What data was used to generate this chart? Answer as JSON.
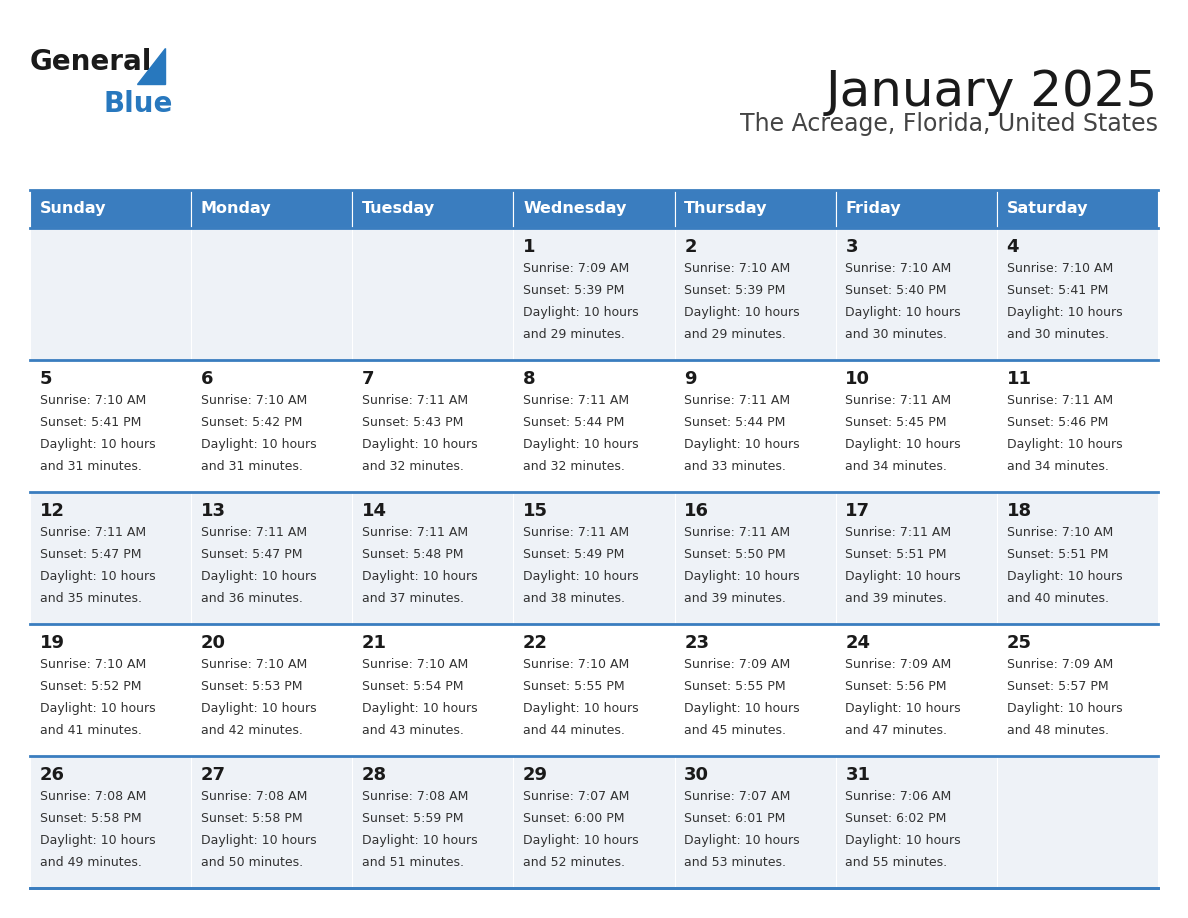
{
  "title": "January 2025",
  "subtitle": "The Acreage, Florida, United States",
  "header_color": "#3a7dbf",
  "header_text_color": "#ffffff",
  "cell_bg_even": "#eef2f7",
  "cell_bg_odd": "#ffffff",
  "border_color": "#3a7dbf",
  "day_names": [
    "Sunday",
    "Monday",
    "Tuesday",
    "Wednesday",
    "Thursday",
    "Friday",
    "Saturday"
  ],
  "title_color": "#1a1a1a",
  "subtitle_color": "#444444",
  "day_num_color": "#1a1a1a",
  "info_color": "#333333",
  "logo_general_color": "#1a1a1a",
  "logo_blue_color": "#2878be",
  "calendar": [
    [
      {
        "day": "",
        "sunrise": "",
        "sunset": "",
        "daylight": ""
      },
      {
        "day": "",
        "sunrise": "",
        "sunset": "",
        "daylight": ""
      },
      {
        "day": "",
        "sunrise": "",
        "sunset": "",
        "daylight": ""
      },
      {
        "day": "1",
        "sunrise": "7:09 AM",
        "sunset": "5:39 PM",
        "daylight": "10 hours and 29 minutes."
      },
      {
        "day": "2",
        "sunrise": "7:10 AM",
        "sunset": "5:39 PM",
        "daylight": "10 hours and 29 minutes."
      },
      {
        "day": "3",
        "sunrise": "7:10 AM",
        "sunset": "5:40 PM",
        "daylight": "10 hours and 30 minutes."
      },
      {
        "day": "4",
        "sunrise": "7:10 AM",
        "sunset": "5:41 PM",
        "daylight": "10 hours and 30 minutes."
      }
    ],
    [
      {
        "day": "5",
        "sunrise": "7:10 AM",
        "sunset": "5:41 PM",
        "daylight": "10 hours and 31 minutes."
      },
      {
        "day": "6",
        "sunrise": "7:10 AM",
        "sunset": "5:42 PM",
        "daylight": "10 hours and 31 minutes."
      },
      {
        "day": "7",
        "sunrise": "7:11 AM",
        "sunset": "5:43 PM",
        "daylight": "10 hours and 32 minutes."
      },
      {
        "day": "8",
        "sunrise": "7:11 AM",
        "sunset": "5:44 PM",
        "daylight": "10 hours and 32 minutes."
      },
      {
        "day": "9",
        "sunrise": "7:11 AM",
        "sunset": "5:44 PM",
        "daylight": "10 hours and 33 minutes."
      },
      {
        "day": "10",
        "sunrise": "7:11 AM",
        "sunset": "5:45 PM",
        "daylight": "10 hours and 34 minutes."
      },
      {
        "day": "11",
        "sunrise": "7:11 AM",
        "sunset": "5:46 PM",
        "daylight": "10 hours and 34 minutes."
      }
    ],
    [
      {
        "day": "12",
        "sunrise": "7:11 AM",
        "sunset": "5:47 PM",
        "daylight": "10 hours and 35 minutes."
      },
      {
        "day": "13",
        "sunrise": "7:11 AM",
        "sunset": "5:47 PM",
        "daylight": "10 hours and 36 minutes."
      },
      {
        "day": "14",
        "sunrise": "7:11 AM",
        "sunset": "5:48 PM",
        "daylight": "10 hours and 37 minutes."
      },
      {
        "day": "15",
        "sunrise": "7:11 AM",
        "sunset": "5:49 PM",
        "daylight": "10 hours and 38 minutes."
      },
      {
        "day": "16",
        "sunrise": "7:11 AM",
        "sunset": "5:50 PM",
        "daylight": "10 hours and 39 minutes."
      },
      {
        "day": "17",
        "sunrise": "7:11 AM",
        "sunset": "5:51 PM",
        "daylight": "10 hours and 39 minutes."
      },
      {
        "day": "18",
        "sunrise": "7:10 AM",
        "sunset": "5:51 PM",
        "daylight": "10 hours and 40 minutes."
      }
    ],
    [
      {
        "day": "19",
        "sunrise": "7:10 AM",
        "sunset": "5:52 PM",
        "daylight": "10 hours and 41 minutes."
      },
      {
        "day": "20",
        "sunrise": "7:10 AM",
        "sunset": "5:53 PM",
        "daylight": "10 hours and 42 minutes."
      },
      {
        "day": "21",
        "sunrise": "7:10 AM",
        "sunset": "5:54 PM",
        "daylight": "10 hours and 43 minutes."
      },
      {
        "day": "22",
        "sunrise": "7:10 AM",
        "sunset": "5:55 PM",
        "daylight": "10 hours and 44 minutes."
      },
      {
        "day": "23",
        "sunrise": "7:09 AM",
        "sunset": "5:55 PM",
        "daylight": "10 hours and 45 minutes."
      },
      {
        "day": "24",
        "sunrise": "7:09 AM",
        "sunset": "5:56 PM",
        "daylight": "10 hours and 47 minutes."
      },
      {
        "day": "25",
        "sunrise": "7:09 AM",
        "sunset": "5:57 PM",
        "daylight": "10 hours and 48 minutes."
      }
    ],
    [
      {
        "day": "26",
        "sunrise": "7:08 AM",
        "sunset": "5:58 PM",
        "daylight": "10 hours and 49 minutes."
      },
      {
        "day": "27",
        "sunrise": "7:08 AM",
        "sunset": "5:58 PM",
        "daylight": "10 hours and 50 minutes."
      },
      {
        "day": "28",
        "sunrise": "7:08 AM",
        "sunset": "5:59 PM",
        "daylight": "10 hours and 51 minutes."
      },
      {
        "day": "29",
        "sunrise": "7:07 AM",
        "sunset": "6:00 PM",
        "daylight": "10 hours and 52 minutes."
      },
      {
        "day": "30",
        "sunrise": "7:07 AM",
        "sunset": "6:01 PM",
        "daylight": "10 hours and 53 minutes."
      },
      {
        "day": "31",
        "sunrise": "7:06 AM",
        "sunset": "6:02 PM",
        "daylight": "10 hours and 55 minutes."
      },
      {
        "day": "",
        "sunrise": "",
        "sunset": "",
        "daylight": ""
      }
    ]
  ]
}
